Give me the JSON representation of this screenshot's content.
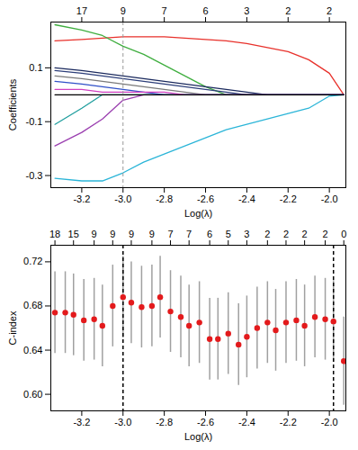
{
  "chart_data": [
    {
      "type": "line",
      "ylabel": "Coefficients",
      "xlabel": "Log(λ)",
      "x": [
        -3.33,
        -3.2,
        -3.1,
        -3.0,
        -2.9,
        -2.8,
        -2.7,
        -2.6,
        -2.5,
        -2.4,
        -2.3,
        -2.2,
        -2.1,
        -2.0,
        -1.93
      ],
      "series": [
        {
          "color": "#e8312b",
          "values": [
            0.2,
            0.205,
            0.21,
            0.215,
            0.215,
            0.215,
            0.21,
            0.205,
            0.2,
            0.19,
            0.175,
            0.16,
            0.13,
            0.08,
            0
          ]
        },
        {
          "color": "#3fae3f",
          "values": [
            0.26,
            0.24,
            0.22,
            0.18,
            0.15,
            0.11,
            0.07,
            0.03,
            0,
            0,
            0,
            0,
            0,
            0,
            0
          ]
        },
        {
          "color": "#2bb5d8",
          "values": [
            -0.31,
            -0.32,
            -0.32,
            -0.29,
            -0.25,
            -0.22,
            -0.19,
            -0.16,
            -0.13,
            -0.11,
            -0.09,
            -0.07,
            -0.05,
            -0.005,
            0
          ]
        },
        {
          "color": "#9b3fb0",
          "values": [
            -0.19,
            -0.14,
            -0.09,
            -0.02,
            0,
            0,
            0,
            0,
            0,
            0,
            0,
            0,
            0,
            0,
            0
          ]
        },
        {
          "color": "#1f9e9e",
          "values": [
            -0.11,
            -0.05,
            0,
            0,
            0,
            0,
            0,
            0,
            0,
            0,
            0,
            0,
            0,
            0,
            0
          ]
        },
        {
          "color": "#1b2a5e",
          "values": [
            0.1,
            0.09,
            0.08,
            0.07,
            0.06,
            0.05,
            0.04,
            0.03,
            0.02,
            0.01,
            0,
            0,
            0,
            0,
            0
          ]
        },
        {
          "color": "#2d3f7a",
          "values": [
            0.09,
            0.08,
            0.07,
            0.06,
            0.05,
            0.04,
            0.03,
            0.02,
            0.01,
            0,
            0,
            0,
            0,
            0,
            0
          ]
        },
        {
          "color": "#7a7a7a",
          "values": [
            0.07,
            0.06,
            0.05,
            0.04,
            0.03,
            0.02,
            0.01,
            0,
            0,
            0,
            0,
            0,
            0,
            0,
            0
          ]
        },
        {
          "color": "#3050c8",
          "values": [
            0.05,
            0.04,
            0.03,
            0.02,
            0.01,
            0,
            0,
            0,
            0,
            0,
            0,
            0,
            0,
            0,
            0
          ]
        },
        {
          "color": "#d040c0",
          "values": [
            0.02,
            0.02,
            0.01,
            0.01,
            0.01,
            0.01,
            0,
            0,
            0,
            0,
            0,
            0,
            0,
            0,
            0
          ]
        },
        {
          "color": "#000000",
          "values": [
            0,
            0,
            0,
            0,
            0,
            0,
            0,
            0,
            0,
            0,
            0,
            0,
            0,
            0,
            0
          ]
        }
      ],
      "xlim": [
        -3.35,
        -1.92
      ],
      "xticks": [
        -3.2,
        {
          "value": -3,
          "label": "-3.0"
        },
        -2.8,
        -2.6,
        -2.4,
        -2.2,
        {
          "value": -2,
          "label": "-2.0"
        }
      ],
      "ylim": [
        -0.345,
        0.27
      ],
      "yticks": [
        -0.3,
        -0.1,
        0.1
      ],
      "top_ticks": [
        {
          "value": -3.2,
          "label": "17"
        },
        {
          "value": -3,
          "label": "9"
        },
        {
          "value": -2.8,
          "label": "7"
        },
        {
          "value": -2.6,
          "label": "6"
        },
        {
          "value": -2.4,
          "label": "3"
        },
        {
          "value": -2.2,
          "label": "2"
        },
        {
          "value": -2,
          "label": "2"
        }
      ],
      "vlines": [
        -3
      ]
    },
    {
      "type": "scatter",
      "ylabel": "C-index",
      "xlabel": "Log(λ)",
      "color": "#e31a1c",
      "x": [
        -3.33,
        -3.28,
        -3.24,
        -3.19,
        -3.14,
        -3.1,
        -3.05,
        -3.0,
        -2.96,
        -2.91,
        -2.86,
        -2.82,
        -2.77,
        -2.72,
        -2.68,
        -2.63,
        -2.58,
        -2.54,
        -2.49,
        -2.44,
        -2.4,
        -2.35,
        -2.3,
        -2.26,
        -2.21,
        -2.16,
        -2.12,
        -2.07,
        -2.02,
        -1.98,
        -1.93
      ],
      "values": [
        0.674,
        0.674,
        0.672,
        0.667,
        0.668,
        0.662,
        0.68,
        0.688,
        0.683,
        0.679,
        0.68,
        0.688,
        0.675,
        0.67,
        0.662,
        0.665,
        0.65,
        0.65,
        0.655,
        0.645,
        0.652,
        0.66,
        0.665,
        0.658,
        0.665,
        0.667,
        0.662,
        0.67,
        0.668,
        0.666,
        0.63
      ],
      "lower": [
        0.637,
        0.637,
        0.635,
        0.63,
        0.631,
        0.625,
        0.643,
        0.651,
        0.646,
        0.642,
        0.643,
        0.651,
        0.638,
        0.633,
        0.625,
        0.628,
        0.613,
        0.613,
        0.618,
        0.608,
        0.615,
        0.623,
        0.628,
        0.621,
        0.628,
        0.63,
        0.625,
        0.633,
        0.631,
        0.629,
        0.59
      ],
      "upper": [
        0.711,
        0.711,
        0.709,
        0.704,
        0.705,
        0.699,
        0.717,
        0.725,
        0.72,
        0.716,
        0.717,
        0.725,
        0.712,
        0.707,
        0.699,
        0.702,
        0.687,
        0.687,
        0.692,
        0.682,
        0.689,
        0.697,
        0.702,
        0.695,
        0.702,
        0.704,
        0.699,
        0.707,
        0.705,
        0.703,
        0.67
      ],
      "xlim": [
        -3.35,
        -1.92
      ],
      "xticks": [
        -3.2,
        {
          "value": -3,
          "label": "-3.0"
        },
        -2.8,
        -2.6,
        -2.4,
        -2.2,
        {
          "value": -2,
          "label": "-2.0"
        }
      ],
      "ylim": [
        0.585,
        0.735
      ],
      "yticks": [
        {
          "value": 0.6,
          "label": "0.60"
        },
        0.64,
        0.68,
        0.72
      ],
      "top_ticks": [
        {
          "value": -3.33,
          "label": "18"
        },
        {
          "value": -3.24,
          "label": "15"
        },
        {
          "value": -3.14,
          "label": "9"
        },
        {
          "value": -3.05,
          "label": "9"
        },
        {
          "value": -2.96,
          "label": "9"
        },
        {
          "value": -2.86,
          "label": "9"
        },
        {
          "value": -2.77,
          "label": "7"
        },
        {
          "value": -2.68,
          "label": "7"
        },
        {
          "value": -2.58,
          "label": "6"
        },
        {
          "value": -2.49,
          "label": "5"
        },
        {
          "value": -2.4,
          "label": "3"
        },
        {
          "value": -2.3,
          "label": "2"
        },
        {
          "value": -2.21,
          "label": "2"
        },
        {
          "value": -2.12,
          "label": "2"
        },
        {
          "value": -2.02,
          "label": "2"
        },
        {
          "value": -1.93,
          "label": "0"
        }
      ],
      "vlines": [
        -3,
        -1.98
      ]
    }
  ]
}
